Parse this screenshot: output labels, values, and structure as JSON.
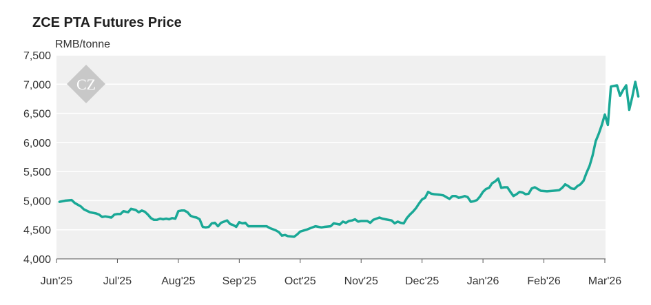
{
  "chart_data": {
    "type": "line",
    "title": "ZCE PTA Futures Price",
    "ylabel": "RMB/tonne",
    "xlabel": "",
    "ylim": [
      4000,
      7500
    ],
    "yticks": [
      4000,
      4500,
      5000,
      5500,
      6000,
      6500,
      7000,
      7500
    ],
    "ytick_labels": [
      "4,000",
      "4,500",
      "5,000",
      "5,500",
      "6,000",
      "6,500",
      "7,000",
      "7,500"
    ],
    "xtick_labels": [
      "Jun'25",
      "Jul'25",
      "Aug'25",
      "Sep'25",
      "Oct'25",
      "Nov'25",
      "Dec'25",
      "Jan'26",
      "Feb'26",
      "Mar'26"
    ],
    "grid": true,
    "line_color": "#1aa896",
    "logo_text": "CZ",
    "series": [
      {
        "values": [
          [
            0.1,
            4980
          ],
          [
            0.3,
            5000
          ],
          [
            0.5,
            5010
          ],
          [
            0.6,
            4960
          ],
          [
            0.8,
            4900
          ],
          [
            0.9,
            4850
          ],
          [
            1.1,
            4800
          ],
          [
            1.3,
            4780
          ],
          [
            1.4,
            4760
          ],
          [
            1.5,
            4720
          ],
          [
            1.6,
            4730
          ],
          [
            1.7,
            4720
          ],
          [
            1.8,
            4710
          ],
          [
            1.9,
            4760
          ],
          [
            2.0,
            4770
          ],
          [
            2.1,
            4770
          ],
          [
            2.2,
            4820
          ],
          [
            2.35,
            4800
          ],
          [
            2.45,
            4860
          ],
          [
            2.6,
            4840
          ],
          [
            2.7,
            4800
          ],
          [
            2.8,
            4830
          ],
          [
            2.9,
            4810
          ],
          [
            3.0,
            4760
          ],
          [
            3.1,
            4700
          ],
          [
            3.2,
            4670
          ],
          [
            3.3,
            4670
          ],
          [
            3.4,
            4690
          ],
          [
            3.5,
            4680
          ],
          [
            3.6,
            4690
          ],
          [
            3.7,
            4680
          ],
          [
            3.8,
            4700
          ],
          [
            3.9,
            4690
          ],
          [
            4.0,
            4820
          ],
          [
            4.1,
            4830
          ],
          [
            4.2,
            4830
          ],
          [
            4.3,
            4800
          ],
          [
            4.4,
            4740
          ],
          [
            4.5,
            4720
          ],
          [
            4.6,
            4710
          ],
          [
            4.7,
            4680
          ],
          [
            4.8,
            4550
          ],
          [
            4.9,
            4540
          ],
          [
            5.0,
            4550
          ],
          [
            5.1,
            4610
          ],
          [
            5.2,
            4620
          ],
          [
            5.3,
            4560
          ],
          [
            5.4,
            4620
          ],
          [
            5.5,
            4640
          ],
          [
            5.6,
            4660
          ],
          [
            5.7,
            4600
          ],
          [
            5.8,
            4580
          ],
          [
            5.9,
            4550
          ],
          [
            6.0,
            4630
          ],
          [
            6.1,
            4610
          ],
          [
            6.2,
            4620
          ],
          [
            6.3,
            4560
          ],
          [
            6.5,
            4560
          ],
          [
            6.7,
            4560
          ],
          [
            6.9,
            4560
          ],
          [
            7.0,
            4530
          ],
          [
            7.1,
            4510
          ],
          [
            7.2,
            4490
          ],
          [
            7.3,
            4460
          ],
          [
            7.4,
            4400
          ],
          [
            7.5,
            4410
          ],
          [
            7.6,
            4390
          ],
          [
            7.8,
            4380
          ],
          [
            7.9,
            4420
          ],
          [
            8.0,
            4470
          ],
          [
            8.2,
            4500
          ],
          [
            8.4,
            4540
          ],
          [
            8.5,
            4560
          ],
          [
            8.6,
            4550
          ],
          [
            8.7,
            4540
          ],
          [
            8.8,
            4550
          ],
          [
            9.0,
            4560
          ],
          [
            9.1,
            4610
          ],
          [
            9.3,
            4590
          ],
          [
            9.4,
            4640
          ],
          [
            9.5,
            4620
          ],
          [
            9.6,
            4650
          ],
          [
            9.7,
            4660
          ],
          [
            9.8,
            4680
          ],
          [
            9.9,
            4640
          ],
          [
            10.0,
            4650
          ],
          [
            10.2,
            4650
          ],
          [
            10.3,
            4620
          ],
          [
            10.4,
            4670
          ],
          [
            10.5,
            4690
          ],
          [
            10.6,
            4710
          ],
          [
            10.7,
            4690
          ],
          [
            10.8,
            4680
          ],
          [
            11.0,
            4660
          ],
          [
            11.1,
            4610
          ],
          [
            11.2,
            4640
          ],
          [
            11.3,
            4620
          ],
          [
            11.4,
            4610
          ],
          [
            11.5,
            4700
          ],
          [
            11.6,
            4760
          ],
          [
            11.7,
            4810
          ],
          [
            11.8,
            4870
          ],
          [
            11.9,
            4950
          ],
          [
            12.0,
            5020
          ],
          [
            12.1,
            5050
          ],
          [
            12.2,
            5150
          ],
          [
            12.3,
            5120
          ],
          [
            12.4,
            5110
          ],
          [
            12.6,
            5100
          ],
          [
            12.7,
            5090
          ],
          [
            12.8,
            5060
          ],
          [
            12.9,
            5030
          ],
          [
            13.0,
            5080
          ],
          [
            13.1,
            5080
          ],
          [
            13.2,
            5050
          ],
          [
            13.3,
            5060
          ],
          [
            13.4,
            5080
          ],
          [
            13.5,
            5060
          ],
          [
            13.6,
            4980
          ],
          [
            13.7,
            4990
          ],
          [
            13.8,
            5010
          ],
          [
            13.9,
            5070
          ],
          [
            14.0,
            5150
          ],
          [
            14.1,
            5200
          ],
          [
            14.2,
            5220
          ],
          [
            14.3,
            5300
          ],
          [
            14.4,
            5330
          ],
          [
            14.5,
            5380
          ],
          [
            14.6,
            5220
          ],
          [
            14.7,
            5230
          ],
          [
            14.8,
            5230
          ],
          [
            14.9,
            5150
          ],
          [
            15.0,
            5080
          ],
          [
            15.1,
            5110
          ],
          [
            15.2,
            5150
          ],
          [
            15.3,
            5140
          ],
          [
            15.4,
            5110
          ],
          [
            15.5,
            5120
          ],
          [
            15.6,
            5210
          ],
          [
            15.7,
            5230
          ],
          [
            15.8,
            5200
          ],
          [
            15.9,
            5170
          ],
          [
            16.1,
            5160
          ],
          [
            16.3,
            5170
          ],
          [
            16.5,
            5180
          ],
          [
            16.6,
            5220
          ],
          [
            16.7,
            5280
          ],
          [
            16.8,
            5250
          ],
          [
            16.9,
            5210
          ],
          [
            17.0,
            5200
          ],
          [
            17.1,
            5250
          ],
          [
            17.2,
            5280
          ],
          [
            17.3,
            5340
          ],
          [
            17.4,
            5480
          ],
          [
            17.5,
            5600
          ],
          [
            17.6,
            5780
          ],
          [
            17.7,
            6020
          ],
          [
            17.8,
            6150
          ],
          [
            17.9,
            6300
          ],
          [
            18.0,
            6480
          ],
          [
            18.1,
            6300
          ],
          [
            18.2,
            6960
          ],
          [
            18.4,
            6980
          ],
          [
            18.5,
            6800
          ],
          [
            18.6,
            6900
          ],
          [
            18.7,
            6980
          ],
          [
            18.8,
            6560
          ],
          [
            18.9,
            6780
          ],
          [
            19.0,
            7040
          ],
          [
            19.1,
            6790
          ]
        ]
      }
    ]
  }
}
